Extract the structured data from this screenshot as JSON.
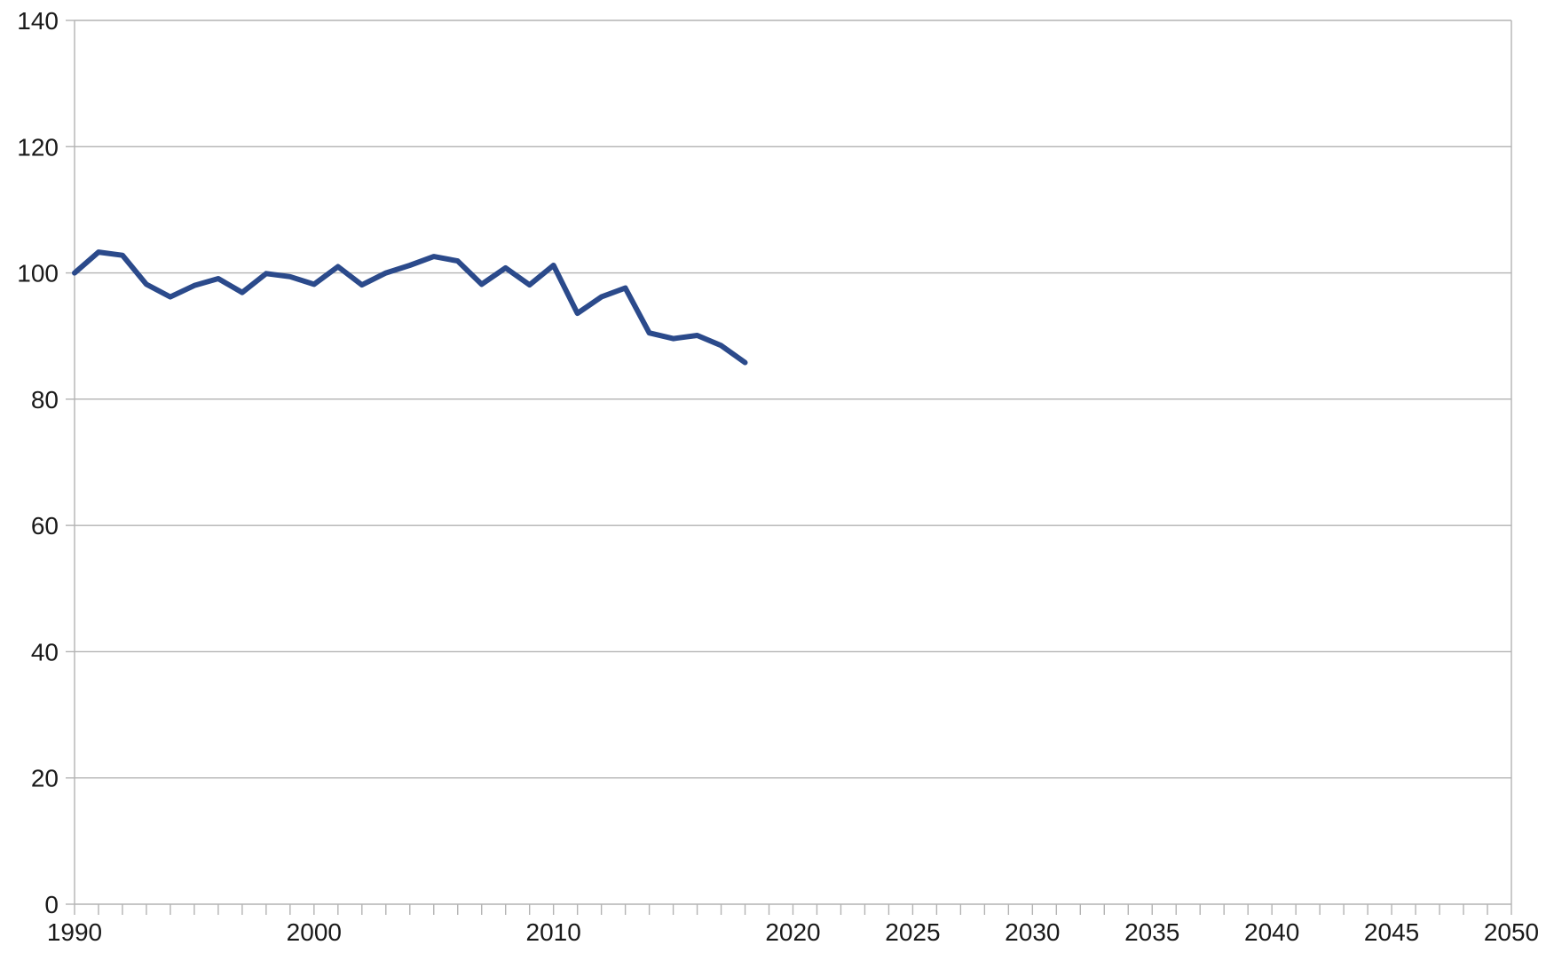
{
  "chart_data": {
    "type": "line",
    "title": "",
    "xlabel": "",
    "ylabel": "",
    "xlim": [
      1990,
      2050
    ],
    "ylim": [
      0,
      140
    ],
    "grid": true,
    "y_ticks": [
      0,
      20,
      40,
      60,
      80,
      100,
      120,
      140
    ],
    "x_ticks": [
      1990,
      2000,
      2010,
      2020,
      2025,
      2030,
      2035,
      2040,
      2045,
      2050
    ],
    "x_tick_labels": [
      "1990",
      "2000",
      "2010",
      "2020",
      "2025",
      "2030",
      "2035",
      "2040",
      "2045",
      "2050"
    ],
    "y_tick_labels": [
      "0",
      "20",
      "40",
      "60",
      "80",
      "100",
      "120",
      "140"
    ],
    "series": [
      {
        "color": "#2b4a8b",
        "x": [
          1990,
          1991,
          1992,
          1993,
          1994,
          1995,
          1996,
          1997,
          1998,
          1999,
          2000,
          2001,
          2002,
          2003,
          2004,
          2005,
          2006,
          2007,
          2008,
          2009,
          2010,
          2011,
          2012,
          2013,
          2014,
          2015,
          2016,
          2017,
          2018
        ],
        "values": [
          100,
          103.3,
          102.8,
          98.2,
          96.2,
          98,
          99.1,
          96.9,
          99.9,
          99.4,
          98.2,
          101,
          98.1,
          100,
          101.2,
          102.6,
          101.9,
          98.2,
          100.8,
          98.1,
          101.2,
          93.6,
          96.2,
          97.6,
          90.5,
          89.6,
          90.1,
          88.5,
          85.8
        ]
      }
    ]
  }
}
